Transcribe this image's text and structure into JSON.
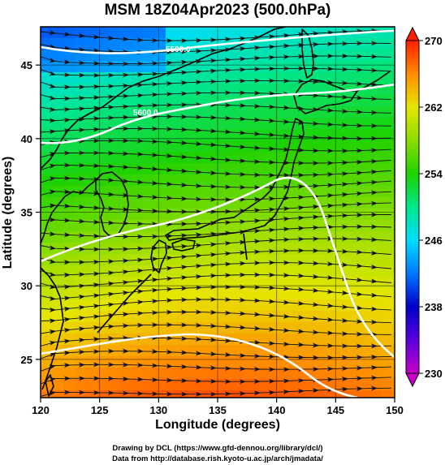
{
  "title": "MSM 18Z04Apr2023 (500.0hPa)",
  "xlabel": "Longitude (degrees)",
  "ylabel": "Latitude  (degrees)",
  "x_ticks": [
    "120",
    "125",
    "130",
    "135",
    "140",
    "145",
    "150"
  ],
  "y_ticks": [
    "25",
    "30",
    "35",
    "40",
    "45"
  ],
  "colorbar": {
    "ticks": [
      "270",
      "262",
      "254",
      "246",
      "238",
      "230"
    ],
    "min": 230,
    "max": 270,
    "stops": [
      {
        "v": 230,
        "c": "#c800c8"
      },
      {
        "v": 234,
        "c": "#5a00dc"
      },
      {
        "v": 238,
        "c": "#0000c8"
      },
      {
        "v": 242,
        "c": "#0078ff"
      },
      {
        "v": 246,
        "c": "#00dcff"
      },
      {
        "v": 250,
        "c": "#00e68c"
      },
      {
        "v": 254,
        "c": "#1ed200"
      },
      {
        "v": 258,
        "c": "#8cdc00"
      },
      {
        "v": 262,
        "c": "#e6e600"
      },
      {
        "v": 266,
        "c": "#ff8c00"
      },
      {
        "v": 270,
        "c": "#ff1e00"
      }
    ]
  },
  "contour_labels": [
    "5500.0",
    "5600.0"
  ],
  "credits": {
    "line1": "Drawing by DCL (https://www.gfd-dennou.org/library/dcl/)",
    "line2": "Data from http://database.rish.kyoto-u.ac.jp/arch/jmadata/"
  },
  "chart_data": {
    "type": "heatmap",
    "title": "MSM 18Z04Apr2023 (500.0hPa)",
    "xlabel": "Longitude (degrees)",
    "ylabel": "Latitude  (degrees)",
    "xlim": [
      120,
      150
    ],
    "ylim": [
      22.4,
      47.6
    ],
    "colorbar_range": [
      230,
      270
    ],
    "colorbar_ticks": [
      230,
      238,
      246,
      254,
      262,
      270
    ],
    "grid": true,
    "contour_levels_labeled": [
      5500,
      5600
    ]
  }
}
